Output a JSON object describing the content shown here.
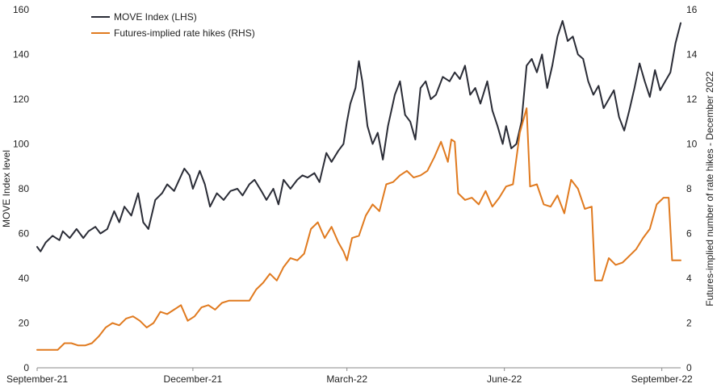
{
  "chart_data": {
    "type": "line",
    "title": "",
    "xlabel": "",
    "ylabel": "MOVE Index level",
    "y2label": "Futures-implied number of rate hikes - December 2022",
    "ylim": [
      0,
      160
    ],
    "y2lim": [
      0,
      16
    ],
    "yticks": [
      "0",
      "20",
      "40",
      "60",
      "80",
      "100",
      "120",
      "140",
      "160"
    ],
    "y2ticks": [
      "0",
      "2",
      "4",
      "6",
      "8",
      "10",
      "12",
      "14",
      "16"
    ],
    "xlim": [
      "2021-09-01",
      "2022-09-12"
    ],
    "xticks": [
      {
        "date": "2021-09-01",
        "label": "September-21"
      },
      {
        "date": "2021-12-01",
        "label": "December-21"
      },
      {
        "date": "2022-03-01",
        "label": "March-22"
      },
      {
        "date": "2022-06-01",
        "label": "June-22"
      },
      {
        "date": "2022-09-01",
        "label": "September-22"
      }
    ],
    "legend_position": "top-left",
    "grid": false,
    "series": [
      {
        "name": "MOVE Index (LHS)",
        "axis": "left",
        "color": "#2a2c36",
        "points": [
          [
            "2021-09-01",
            54
          ],
          [
            "2021-09-03",
            52
          ],
          [
            "2021-09-06",
            56
          ],
          [
            "2021-09-10",
            59
          ],
          [
            "2021-09-14",
            57
          ],
          [
            "2021-09-16",
            61
          ],
          [
            "2021-09-20",
            58
          ],
          [
            "2021-09-24",
            62
          ],
          [
            "2021-09-28",
            58
          ],
          [
            "2021-10-01",
            61
          ],
          [
            "2021-10-05",
            63
          ],
          [
            "2021-10-08",
            60
          ],
          [
            "2021-10-12",
            62
          ],
          [
            "2021-10-16",
            70
          ],
          [
            "2021-10-19",
            65
          ],
          [
            "2021-10-22",
            72
          ],
          [
            "2021-10-26",
            68
          ],
          [
            "2021-10-30",
            78
          ],
          [
            "2021-11-02",
            65
          ],
          [
            "2021-11-05",
            62
          ],
          [
            "2021-11-09",
            75
          ],
          [
            "2021-11-13",
            78
          ],
          [
            "2021-11-16",
            82
          ],
          [
            "2021-11-20",
            79
          ],
          [
            "2021-11-23",
            84
          ],
          [
            "2021-11-26",
            89
          ],
          [
            "2021-11-29",
            86
          ],
          [
            "2021-12-01",
            80
          ],
          [
            "2021-12-05",
            88
          ],
          [
            "2021-12-08",
            82
          ],
          [
            "2021-12-11",
            72
          ],
          [
            "2021-12-15",
            78
          ],
          [
            "2021-12-19",
            75
          ],
          [
            "2021-12-23",
            79
          ],
          [
            "2021-12-27",
            80
          ],
          [
            "2021-12-30",
            77
          ],
          [
            "2022-01-03",
            82
          ],
          [
            "2022-01-06",
            84
          ],
          [
            "2022-01-10",
            79
          ],
          [
            "2022-01-13",
            75
          ],
          [
            "2022-01-17",
            80
          ],
          [
            "2022-01-20",
            73
          ],
          [
            "2022-01-23",
            84
          ],
          [
            "2022-01-27",
            80
          ],
          [
            "2022-01-31",
            84
          ],
          [
            "2022-02-03",
            86
          ],
          [
            "2022-02-06",
            85
          ],
          [
            "2022-02-10",
            87
          ],
          [
            "2022-02-13",
            83
          ],
          [
            "2022-02-17",
            96
          ],
          [
            "2022-02-20",
            92
          ],
          [
            "2022-02-24",
            97
          ],
          [
            "2022-02-27",
            100
          ],
          [
            "2022-03-01",
            110
          ],
          [
            "2022-03-03",
            118
          ],
          [
            "2022-03-06",
            125
          ],
          [
            "2022-03-08",
            137
          ],
          [
            "2022-03-10",
            128
          ],
          [
            "2022-03-13",
            108
          ],
          [
            "2022-03-16",
            100
          ],
          [
            "2022-03-19",
            105
          ],
          [
            "2022-03-22",
            93
          ],
          [
            "2022-03-25",
            108
          ],
          [
            "2022-03-29",
            122
          ],
          [
            "2022-04-01",
            128
          ],
          [
            "2022-04-04",
            113
          ],
          [
            "2022-04-07",
            110
          ],
          [
            "2022-04-10",
            102
          ],
          [
            "2022-04-13",
            125
          ],
          [
            "2022-04-16",
            128
          ],
          [
            "2022-04-19",
            120
          ],
          [
            "2022-04-22",
            122
          ],
          [
            "2022-04-26",
            130
          ],
          [
            "2022-04-30",
            128
          ],
          [
            "2022-05-03",
            132
          ],
          [
            "2022-05-06",
            129
          ],
          [
            "2022-05-09",
            135
          ],
          [
            "2022-05-12",
            122
          ],
          [
            "2022-05-15",
            125
          ],
          [
            "2022-05-18",
            118
          ],
          [
            "2022-05-22",
            128
          ],
          [
            "2022-05-25",
            115
          ],
          [
            "2022-05-28",
            108
          ],
          [
            "2022-05-31",
            100
          ],
          [
            "2022-06-02",
            108
          ],
          [
            "2022-06-05",
            98
          ],
          [
            "2022-06-08",
            100
          ],
          [
            "2022-06-11",
            110
          ],
          [
            "2022-06-14",
            135
          ],
          [
            "2022-06-17",
            138
          ],
          [
            "2022-06-20",
            132
          ],
          [
            "2022-06-23",
            140
          ],
          [
            "2022-06-26",
            125
          ],
          [
            "2022-06-29",
            135
          ],
          [
            "2022-07-02",
            148
          ],
          [
            "2022-07-05",
            155
          ],
          [
            "2022-07-08",
            146
          ],
          [
            "2022-07-11",
            148
          ],
          [
            "2022-07-14",
            140
          ],
          [
            "2022-07-17",
            138
          ],
          [
            "2022-07-20",
            128
          ],
          [
            "2022-07-23",
            122
          ],
          [
            "2022-07-26",
            126
          ],
          [
            "2022-07-29",
            116
          ],
          [
            "2022-08-01",
            120
          ],
          [
            "2022-08-04",
            124
          ],
          [
            "2022-08-07",
            112
          ],
          [
            "2022-08-10",
            106
          ],
          [
            "2022-08-13",
            115
          ],
          [
            "2022-08-16",
            125
          ],
          [
            "2022-08-19",
            136
          ],
          [
            "2022-08-22",
            128
          ],
          [
            "2022-08-25",
            121
          ],
          [
            "2022-08-28",
            133
          ],
          [
            "2022-08-31",
            124
          ],
          [
            "2022-09-03",
            128
          ],
          [
            "2022-09-06",
            132
          ],
          [
            "2022-09-09",
            145
          ],
          [
            "2022-09-12",
            154
          ]
        ]
      },
      {
        "name": "Futures-implied rate hikes (RHS)",
        "axis": "right",
        "color": "#e07a1f",
        "points": [
          [
            "2021-09-01",
            0.8
          ],
          [
            "2021-09-05",
            0.8
          ],
          [
            "2021-09-09",
            0.8
          ],
          [
            "2021-09-13",
            0.8
          ],
          [
            "2021-09-17",
            1.1
          ],
          [
            "2021-09-21",
            1.1
          ],
          [
            "2021-09-25",
            1.0
          ],
          [
            "2021-09-29",
            1.0
          ],
          [
            "2021-10-03",
            1.1
          ],
          [
            "2021-10-07",
            1.4
          ],
          [
            "2021-10-11",
            1.8
          ],
          [
            "2021-10-15",
            2.0
          ],
          [
            "2021-10-19",
            1.9
          ],
          [
            "2021-10-23",
            2.2
          ],
          [
            "2021-10-27",
            2.3
          ],
          [
            "2021-10-31",
            2.1
          ],
          [
            "2021-11-04",
            1.8
          ],
          [
            "2021-11-08",
            2.0
          ],
          [
            "2021-11-12",
            2.5
          ],
          [
            "2021-11-16",
            2.4
          ],
          [
            "2021-11-20",
            2.6
          ],
          [
            "2021-11-24",
            2.8
          ],
          [
            "2021-11-28",
            2.1
          ],
          [
            "2021-12-02",
            2.3
          ],
          [
            "2021-12-06",
            2.7
          ],
          [
            "2021-12-10",
            2.8
          ],
          [
            "2021-12-14",
            2.6
          ],
          [
            "2021-12-18",
            2.9
          ],
          [
            "2021-12-22",
            3.0
          ],
          [
            "2021-12-26",
            3.0
          ],
          [
            "2021-12-30",
            3.0
          ],
          [
            "2022-01-03",
            3.0
          ],
          [
            "2022-01-07",
            3.5
          ],
          [
            "2022-01-11",
            3.8
          ],
          [
            "2022-01-15",
            4.2
          ],
          [
            "2022-01-19",
            3.9
          ],
          [
            "2022-01-23",
            4.5
          ],
          [
            "2022-01-27",
            4.9
          ],
          [
            "2022-01-31",
            4.8
          ],
          [
            "2022-02-04",
            5.1
          ],
          [
            "2022-02-08",
            6.2
          ],
          [
            "2022-02-12",
            6.5
          ],
          [
            "2022-02-16",
            5.8
          ],
          [
            "2022-02-20",
            6.3
          ],
          [
            "2022-02-24",
            5.6
          ],
          [
            "2022-02-27",
            5.2
          ],
          [
            "2022-03-01",
            4.8
          ],
          [
            "2022-03-04",
            5.8
          ],
          [
            "2022-03-08",
            5.9
          ],
          [
            "2022-03-12",
            6.8
          ],
          [
            "2022-03-16",
            7.3
          ],
          [
            "2022-03-20",
            7.0
          ],
          [
            "2022-03-24",
            8.2
          ],
          [
            "2022-03-28",
            8.3
          ],
          [
            "2022-04-01",
            8.6
          ],
          [
            "2022-04-05",
            8.8
          ],
          [
            "2022-04-09",
            8.5
          ],
          [
            "2022-04-13",
            8.6
          ],
          [
            "2022-04-17",
            8.8
          ],
          [
            "2022-04-21",
            9.4
          ],
          [
            "2022-04-25",
            10.1
          ],
          [
            "2022-04-29",
            9.2
          ],
          [
            "2022-05-01",
            10.2
          ],
          [
            "2022-05-03",
            10.1
          ],
          [
            "2022-05-05",
            7.8
          ],
          [
            "2022-05-09",
            7.5
          ],
          [
            "2022-05-13",
            7.6
          ],
          [
            "2022-05-17",
            7.3
          ],
          [
            "2022-05-21",
            7.9
          ],
          [
            "2022-05-25",
            7.2
          ],
          [
            "2022-05-29",
            7.6
          ],
          [
            "2022-06-02",
            8.1
          ],
          [
            "2022-06-06",
            8.2
          ],
          [
            "2022-06-10",
            10.5
          ],
          [
            "2022-06-14",
            11.6
          ],
          [
            "2022-06-16",
            8.1
          ],
          [
            "2022-06-20",
            8.2
          ],
          [
            "2022-06-24",
            7.3
          ],
          [
            "2022-06-28",
            7.2
          ],
          [
            "2022-07-02",
            7.7
          ],
          [
            "2022-07-06",
            6.9
          ],
          [
            "2022-07-10",
            8.4
          ],
          [
            "2022-07-14",
            8.0
          ],
          [
            "2022-07-18",
            7.1
          ],
          [
            "2022-07-22",
            7.2
          ],
          [
            "2022-07-24",
            3.9
          ],
          [
            "2022-07-28",
            3.9
          ],
          [
            "2022-08-01",
            4.9
          ],
          [
            "2022-08-05",
            4.6
          ],
          [
            "2022-08-09",
            4.7
          ],
          [
            "2022-08-13",
            5.0
          ],
          [
            "2022-08-17",
            5.3
          ],
          [
            "2022-08-21",
            5.8
          ],
          [
            "2022-08-25",
            6.2
          ],
          [
            "2022-08-29",
            7.3
          ],
          [
            "2022-09-02",
            7.6
          ],
          [
            "2022-09-05",
            7.6
          ],
          [
            "2022-09-07",
            4.8
          ],
          [
            "2022-09-12",
            4.8
          ]
        ]
      }
    ]
  }
}
